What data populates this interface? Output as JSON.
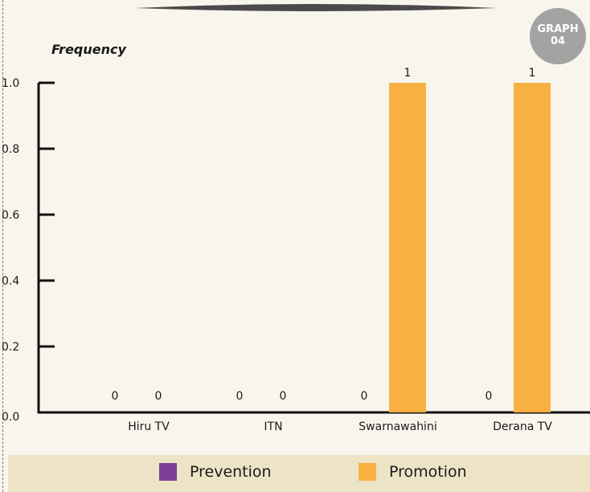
{
  "badge": {
    "line1": "GRAPH",
    "line2": "04"
  },
  "colors": {
    "prevention": "#7b3f98",
    "promotion": "#f9b042",
    "axis": "#111111"
  },
  "chart_data": {
    "type": "bar",
    "title": "",
    "xlabel": "",
    "ylabel": "Frequency",
    "categories": [
      "Hiru TV",
      "ITN",
      "Swarnawahini",
      "Derana TV"
    ],
    "series": [
      {
        "name": "Prevention",
        "values": [
          0,
          0,
          0,
          0
        ]
      },
      {
        "name": "Promotion",
        "values": [
          0,
          0,
          1,
          1
        ]
      }
    ],
    "ylim": [
      0,
      1.0
    ],
    "yticks": [
      "0.0",
      "0.2",
      "0.4",
      "0.6",
      "0.8",
      "1.0"
    ],
    "data_labels": [
      [
        "0",
        "0",
        "0",
        "0"
      ],
      [
        "0",
        "0",
        "1",
        "1"
      ]
    ],
    "grid": false,
    "legend": "bottom"
  }
}
